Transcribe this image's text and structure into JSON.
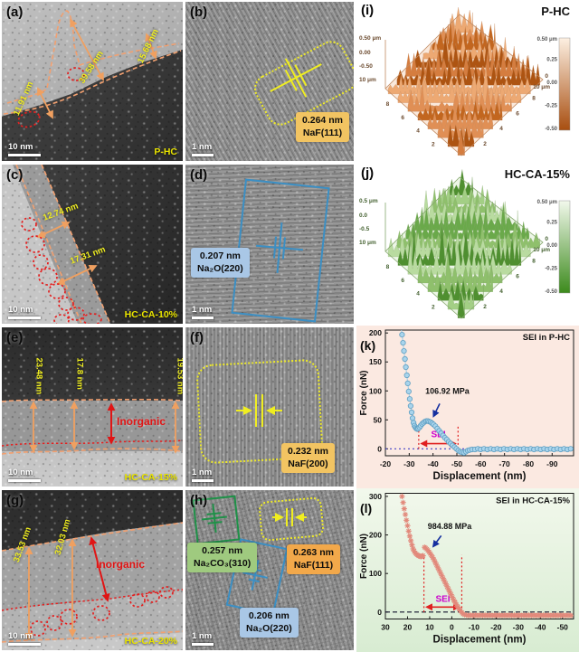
{
  "figure": {
    "panels": {
      "a": {
        "label": "(a)",
        "sample": "P-HC",
        "scale_bar": "10 nm",
        "measurements": [
          "11.91 nm",
          "39.58 nm",
          "15.68 nm"
        ]
      },
      "b": {
        "label": "(b)",
        "scale_bar": "1 nm",
        "d_value": "0.264 nm",
        "d_phase": "NaF(111)"
      },
      "c": {
        "label": "(c)",
        "sample": "HC-CA-10%",
        "scale_bar": "10 nm",
        "measurements": [
          "12.74 nm",
          "17.31 nm"
        ]
      },
      "d": {
        "label": "(d)",
        "scale_bar": "1 nm",
        "d_value": "0.207 nm",
        "d_phase": "Na₂O(220)"
      },
      "e": {
        "label": "(e)",
        "sample": "HC-CA-15%",
        "scale_bar": "10 nm",
        "measurements": [
          "23.48 nm",
          "17.8 nm",
          "19.53 nm"
        ],
        "annotation": "Inorganic"
      },
      "f": {
        "label": "(f)",
        "scale_bar": "1 nm",
        "d_value": "0.232 nm",
        "d_phase": "NaF(200)"
      },
      "g": {
        "label": "(g)",
        "sample": "HC-CA-20%",
        "scale_bar": "10 nm",
        "measurements": [
          "33.53 nm",
          "32.03 nm"
        ],
        "annotation": "Inorganic"
      },
      "h": {
        "label": "(h)",
        "scale_bar": "1 nm",
        "d_list": [
          {
            "value": "0.257 nm",
            "phase": "Na₂CO₃(310)"
          },
          {
            "value": "0.263 nm",
            "phase": "NaF(111)"
          },
          {
            "value": "0.206 nm",
            "phase": "Na₂O(220)"
          }
        ]
      },
      "i": {
        "label": "(i)",
        "sample": "P-HC"
      },
      "j": {
        "label": "(j)",
        "sample": "HC-CA-15%"
      },
      "k": {
        "label": "(k)"
      },
      "l": {
        "label": "(l)"
      }
    }
  },
  "chart_data": [
    {
      "id": "i",
      "type": "surface",
      "title": "P-HC",
      "scan_area_um": [
        10,
        10
      ],
      "height_range_um": [
        -0.5,
        0.5
      ],
      "seed": 11,
      "palette": [
        "#eda973",
        "#d57d3f",
        "#c2661f",
        "#ad5412",
        "#e08f55"
      ],
      "frame": "#c28a60",
      "tick_color": "#6b4a2e",
      "z_axis_labels": [
        "0.50 μm",
        "0.00",
        "-0.50",
        "10 μm"
      ],
      "left_axis_ticks": [
        "8",
        "6",
        "4",
        "2"
      ],
      "right_axis_labels": [
        "0",
        "10 μm"
      ],
      "right_axis_ticks": [
        "8",
        "6",
        "4",
        "2"
      ],
      "colorbar": {
        "labels": [
          "0.50 μm",
          "0.25",
          "0.00",
          "-0.25",
          "-0.50"
        ],
        "top": "#fdf0e2",
        "bottom": "#a84e10"
      }
    },
    {
      "id": "j",
      "type": "surface",
      "title": "HC-CA-15%",
      "scan_area_um": [
        10,
        10
      ],
      "height_range_um": [
        -0.5,
        0.5
      ],
      "seed": 23,
      "palette": [
        "#b9dba0",
        "#8fc06c",
        "#6aa94a",
        "#4f8f30",
        "#a3cf85"
      ],
      "frame": "#86a86e",
      "tick_color": "#43602f",
      "z_axis_labels": [
        "0.5 μm",
        "0.0",
        "-0.5",
        "10 μm"
      ],
      "left_axis_ticks": [
        "8",
        "6",
        "4",
        "2"
      ],
      "right_axis_labels": [
        "0",
        "10 μm"
      ],
      "right_axis_ticks": [
        "8",
        "6",
        "4",
        "2"
      ],
      "colorbar": {
        "labels": [
          "0.50 μm",
          "0.25",
          "0.00",
          "-0.25",
          "-0.50"
        ],
        "top": "#f2f9ec",
        "bottom": "#3c8a1c"
      }
    },
    {
      "id": "k",
      "type": "scatter",
      "title": "SEI in P-HC",
      "xlabel": "Displacement (nm)",
      "ylabel": "Force (nN)",
      "xlim": [
        -20,
        -99
      ],
      "ylim": [
        -12,
        205
      ],
      "x_ticks": [
        -20,
        -30,
        -40,
        -50,
        -60,
        -70,
        -80,
        -90
      ],
      "y_ticks": [
        0,
        50,
        100,
        150,
        200
      ],
      "marker": "circle",
      "marker_fill": "#a9d4ec",
      "marker_stroke": "#5f9fc2",
      "line_color": "#9ccbe4",
      "zero_line": {
        "color": "#4040c8",
        "dash": "2 3"
      },
      "sei": {
        "from": -34,
        "to": -50.5,
        "line_top": 42,
        "arrow_y": 9,
        "label": "SEI",
        "label_y": 20,
        "label_color": "#cc00cc",
        "line_color": "#e02020"
      },
      "annotation": {
        "text": "106.92 MPa",
        "x": -46,
        "y": 95,
        "tail": [
          -42.8,
          78
        ],
        "head": [
          -40.2,
          56
        ],
        "color": "#16309f"
      },
      "points": [
        [
          -26.6,
          210
        ],
        [
          -27,
          197
        ],
        [
          -27.4,
          183
        ],
        [
          -27.8,
          169
        ],
        [
          -28.2,
          155
        ],
        [
          -28.6,
          141
        ],
        [
          -29,
          127
        ],
        [
          -29.4,
          113
        ],
        [
          -29.8,
          99
        ],
        [
          -30.2,
          86
        ],
        [
          -30.6,
          74
        ],
        [
          -31,
          63
        ],
        [
          -31.4,
          53
        ],
        [
          -31.8,
          45
        ],
        [
          -32.2,
          40
        ],
        [
          -32.6,
          37
        ],
        [
          -33,
          35
        ],
        [
          -33.4,
          34
        ],
        [
          -33.8,
          35
        ],
        [
          -34.3,
          37
        ],
        [
          -34.8,
          40
        ],
        [
          -35.4,
          43
        ],
        [
          -36,
          45
        ],
        [
          -36.6,
          47
        ],
        [
          -37.2,
          48
        ],
        [
          -37.8,
          48
        ],
        [
          -38.4,
          47
        ],
        [
          -39,
          46
        ],
        [
          -39.6,
          44
        ],
        [
          -40.2,
          42
        ],
        [
          -41,
          39
        ],
        [
          -41.8,
          35
        ],
        [
          -42.6,
          31
        ],
        [
          -43.4,
          27
        ],
        [
          -44.2,
          23
        ],
        [
          -45,
          19
        ],
        [
          -45.8,
          16
        ],
        [
          -46.6,
          12
        ],
        [
          -47.4,
          9
        ],
        [
          -48.2,
          6
        ],
        [
          -49,
          3
        ],
        [
          -49.8,
          0
        ],
        [
          -50.6,
          -3
        ],
        [
          -51.4,
          -5
        ],
        [
          -52.2,
          -6
        ],
        [
          -53,
          -7
        ],
        [
          -53.8,
          -5
        ],
        [
          -54.6,
          -3
        ],
        [
          -55.4,
          -2
        ],
        [
          -56.4,
          -1
        ],
        [
          -57.6,
          -1
        ],
        [
          -58.8,
          0
        ],
        [
          -60,
          -1
        ],
        [
          -61.4,
          0
        ],
        [
          -62.8,
          -1
        ],
        [
          -64.2,
          0
        ],
        [
          -65.6,
          -1
        ],
        [
          -67,
          0
        ],
        [
          -68.4,
          -1
        ],
        [
          -69.8,
          0
        ],
        [
          -71.2,
          -1
        ],
        [
          -72.6,
          0
        ],
        [
          -74,
          -1
        ],
        [
          -75.4,
          0
        ],
        [
          -76.8,
          -1
        ],
        [
          -78.2,
          0
        ],
        [
          -79.6,
          -1
        ],
        [
          -81,
          0
        ],
        [
          -82.4,
          -1
        ],
        [
          -83.8,
          0
        ],
        [
          -85.2,
          -1
        ],
        [
          -86.6,
          0
        ],
        [
          -88,
          -1
        ],
        [
          -89.4,
          0
        ],
        [
          -90.8,
          -1
        ],
        [
          -92.2,
          0
        ],
        [
          -93.6,
          -1
        ],
        [
          -95,
          0
        ],
        [
          -96.4,
          -1
        ],
        [
          -97.8,
          0
        ]
      ]
    },
    {
      "id": "l",
      "type": "scatter",
      "title": "SEI in HC-CA-15%",
      "xlabel": "Displacement (nm)",
      "ylabel": "Force (nN)",
      "xlim": [
        30,
        -55
      ],
      "ylim": [
        -18,
        308
      ],
      "x_ticks": [
        30,
        20,
        10,
        0,
        -10,
        -20,
        -30,
        -40,
        -50
      ],
      "y_ticks": [
        0,
        100,
        200,
        300
      ],
      "marker": "star",
      "marker_stroke": "#e2897b",
      "zero_line": {
        "color": "#10102a",
        "dash": "5 3"
      },
      "sei": {
        "from": 12.6,
        "to": -4.5,
        "line_top": 148,
        "arrow_y": 13,
        "label": "SEI",
        "label_y": 26,
        "label_color": "#cc00cc",
        "line_color": "#e02020"
      },
      "annotation": {
        "text": "984.88 MPa",
        "x": 1,
        "y": 215,
        "tail": [
          4.8,
          198
        ],
        "head": [
          8.4,
          170
        ],
        "color": "#16309f"
      },
      "points": [
        [
          23,
          316
        ],
        [
          22.5,
          300
        ],
        [
          22,
          284
        ],
        [
          21.5,
          268
        ],
        [
          21,
          253
        ],
        [
          20.5,
          238
        ],
        [
          20,
          224
        ],
        [
          19.5,
          210
        ],
        [
          19,
          197
        ],
        [
          18.5,
          185
        ],
        [
          18,
          174
        ],
        [
          17.5,
          164
        ],
        [
          17,
          158
        ],
        [
          16.5,
          153
        ],
        [
          16,
          150
        ],
        [
          15.5,
          148
        ],
        [
          15,
          146
        ],
        [
          14.5,
          145
        ],
        [
          14,
          144
        ],
        [
          13.5,
          145
        ],
        [
          13,
          146
        ],
        [
          12.3,
          168
        ],
        [
          11.8,
          166
        ],
        [
          11.3,
          163
        ],
        [
          10.8,
          160
        ],
        [
          10.3,
          156
        ],
        [
          9.8,
          152
        ],
        [
          9.3,
          148
        ],
        [
          8.7,
          142
        ],
        [
          8.1,
          136
        ],
        [
          7.5,
          129
        ],
        [
          6.9,
          122
        ],
        [
          6.3,
          115
        ],
        [
          5.7,
          108
        ],
        [
          5.1,
          101
        ],
        [
          4.5,
          94
        ],
        [
          3.9,
          87
        ],
        [
          3.3,
          80
        ],
        [
          2.7,
          73
        ],
        [
          2.1,
          66
        ],
        [
          1.5,
          59
        ],
        [
          0.9,
          52
        ],
        [
          0.3,
          45
        ],
        [
          -0.3,
          38
        ],
        [
          -0.9,
          31
        ],
        [
          -1.5,
          25
        ],
        [
          -2.1,
          19
        ],
        [
          -2.7,
          13
        ],
        [
          -3.3,
          8
        ],
        [
          -3.9,
          3
        ],
        [
          -4.5,
          -1
        ],
        [
          -5.1,
          -5
        ],
        [
          -5.8,
          -7
        ],
        [
          -6.6,
          -8
        ],
        [
          -7.5,
          -9
        ],
        [
          -8.5,
          -8
        ],
        [
          -9.5,
          -9
        ],
        [
          -10.6,
          -8
        ],
        [
          -11.7,
          -9
        ],
        [
          -12.8,
          -8
        ],
        [
          -13.9,
          -9
        ],
        [
          -15,
          -8
        ],
        [
          -16.1,
          -9
        ],
        [
          -17.2,
          -8
        ],
        [
          -18.3,
          -9
        ],
        [
          -19.4,
          -8
        ],
        [
          -20.5,
          -9
        ],
        [
          -21.6,
          -8
        ],
        [
          -22.7,
          -9
        ],
        [
          -23.8,
          -8
        ],
        [
          -24.9,
          -9
        ],
        [
          -26,
          -8
        ],
        [
          -27.1,
          -9
        ],
        [
          -28.2,
          -8
        ],
        [
          -29.3,
          -9
        ],
        [
          -30.4,
          -8
        ],
        [
          -31.5,
          -9
        ],
        [
          -32.6,
          -8
        ],
        [
          -33.7,
          -9
        ],
        [
          -34.8,
          -8
        ],
        [
          -35.9,
          -9
        ],
        [
          -37,
          -8
        ],
        [
          -38.1,
          -9
        ],
        [
          -39.2,
          -8
        ],
        [
          -40.3,
          -9
        ],
        [
          -41.4,
          -8
        ],
        [
          -42.5,
          -9
        ],
        [
          -43.6,
          -8
        ],
        [
          -44.7,
          -9
        ],
        [
          -45.8,
          -8
        ],
        [
          -46.9,
          -9
        ],
        [
          -48,
          -8
        ],
        [
          -49.1,
          -9
        ],
        [
          -50.2,
          -8
        ],
        [
          -51.4,
          -9
        ],
        [
          -52.6,
          -8
        ],
        [
          -53.8,
          -9
        ]
      ]
    }
  ]
}
